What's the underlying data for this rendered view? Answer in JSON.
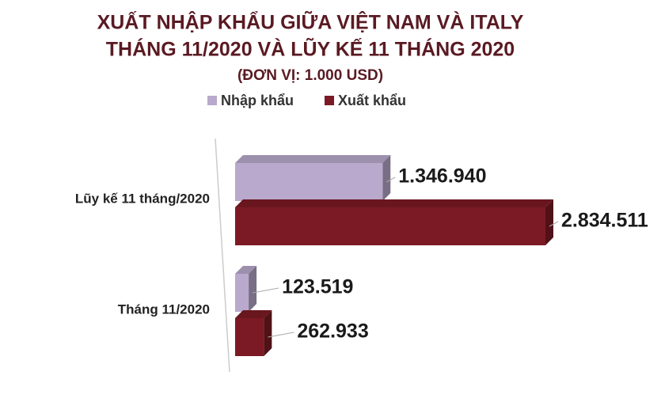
{
  "chart_data": {
    "type": "bar3d_horizontal",
    "title": [
      "XUẤT NHẬP KHẨU GIỮA VIỆT NAM VÀ ITALY",
      "THÁNG 11/2020 VÀ LŨY KẾ 11 THÁNG 2020"
    ],
    "subtitle": "(ĐƠN VỊ: 1.000 USD)",
    "categories": [
      "Lũy kế 11 tháng/2020",
      "Tháng 11/2020"
    ],
    "series": [
      {
        "name": "Nhập khẩu",
        "color": "#b9a9cc",
        "values": [
          1346940,
          123519
        ],
        "value_labels": [
          "1.346.940",
          "123.519"
        ]
      },
      {
        "name": "Xuất khẩu",
        "color": "#7b1a24",
        "values": [
          2834511,
          262933
        ],
        "value_labels": [
          "2.834.511",
          "262.933"
        ]
      }
    ],
    "legend": "top"
  }
}
